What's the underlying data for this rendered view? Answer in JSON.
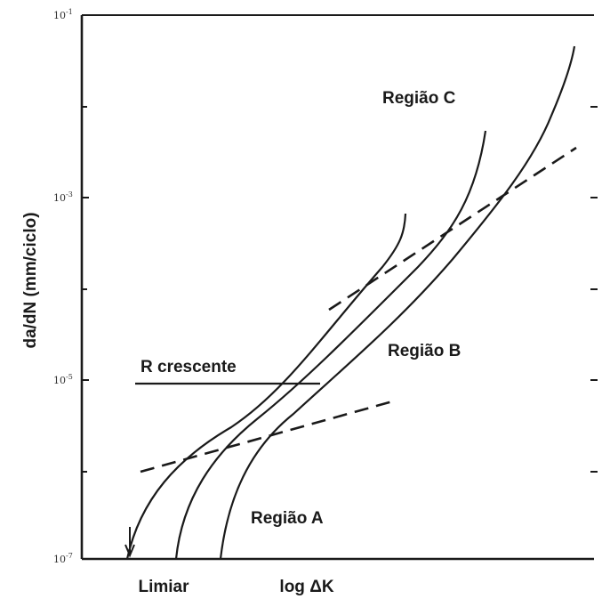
{
  "chart_data": {
    "type": "line",
    "title": "",
    "xlabel": "log ΔK",
    "ylabel": "da/dN (mm/ciclo)",
    "y_scale": "log",
    "ylim": [
      "1e-7",
      "1e-1"
    ],
    "y_ticks": [
      {
        "value": "1e-7",
        "base": "10",
        "exp": "-7"
      },
      {
        "value": "1e-5",
        "base": "10",
        "exp": "-5"
      },
      {
        "value": "1e-3",
        "base": "10",
        "exp": "-3"
      },
      {
        "value": "1e-1",
        "base": "10",
        "exp": "-1"
      }
    ],
    "x_markers": [
      {
        "label": "Limiar"
      },
      {
        "label": "log ΔK"
      }
    ],
    "annotations": [
      {
        "text": "Região C",
        "region": "upper"
      },
      {
        "text": "Região B",
        "region": "middle"
      },
      {
        "text": "Região A",
        "region": "lower"
      },
      {
        "text": "R crescente",
        "arrow": "toward higher curves"
      }
    ],
    "series": [
      {
        "style": "solid",
        "note": "highest R"
      },
      {
        "style": "solid",
        "note": "middle R"
      },
      {
        "style": "solid",
        "note": "lowest R"
      },
      {
        "style": "dashed",
        "note": "Paris law fit (Região B)"
      },
      {
        "style": "dashed",
        "note": "threshold asymptote (Região A)"
      }
    ],
    "grid": false,
    "colors": {
      "line": "#1a1a1a",
      "axis": "#1a1a1a"
    }
  }
}
